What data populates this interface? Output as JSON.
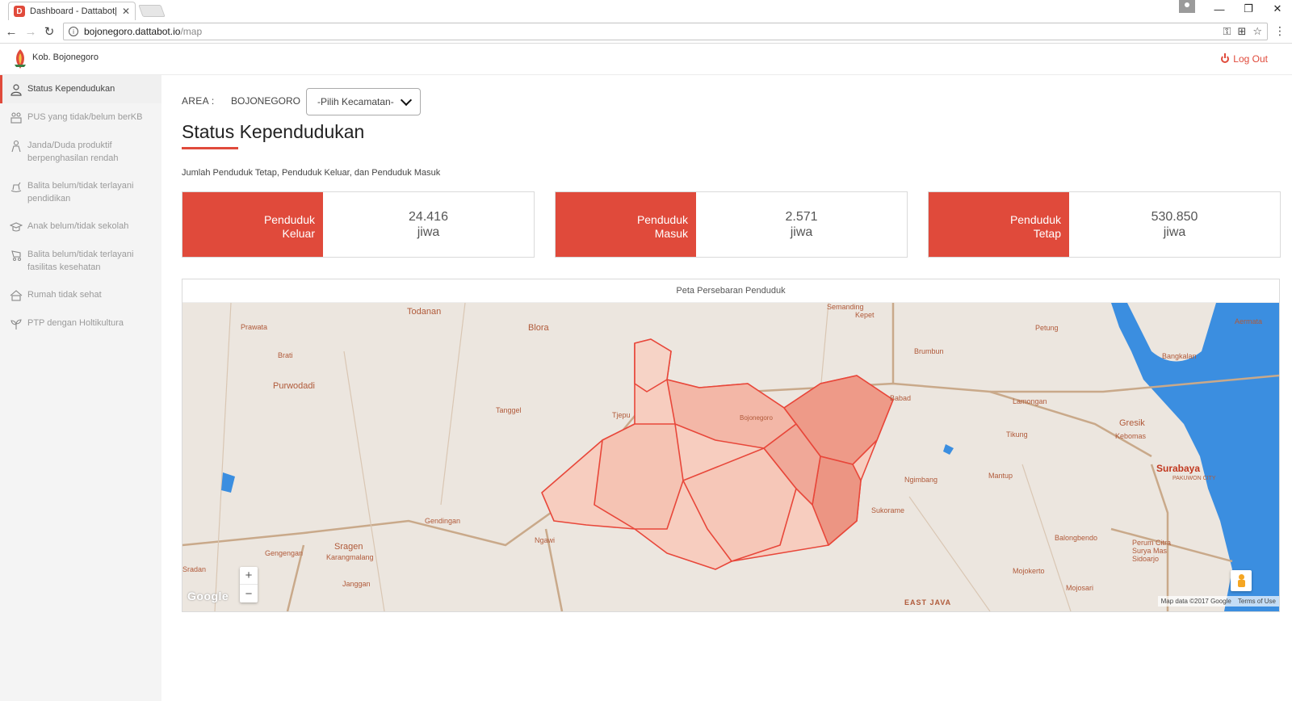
{
  "browser": {
    "tab_title": "Dashboard - Dattabot| Te",
    "url_host": "bojonegoro.dattabot.io",
    "url_path": "/map"
  },
  "header": {
    "brand": "Kob. Bojonegoro",
    "logout": "Log Out",
    "accent": "#e04a3b"
  },
  "sidebar": {
    "items": [
      {
        "label": "Status Kependudukan",
        "icon": "person-icon",
        "active": true
      },
      {
        "label": "PUS yang tidak/belum berKB",
        "icon": "family-icon",
        "active": false
      },
      {
        "label": "Janda/Duda produktif berpenghasilan rendah",
        "icon": "person-alert-icon",
        "active": false
      },
      {
        "label": "Balita belum/tidak terlayani pendidikan",
        "icon": "rocking-horse-icon",
        "active": false
      },
      {
        "label": "Anak belum/tidak sekolah",
        "icon": "graduation-cap-icon",
        "active": false
      },
      {
        "label": "Balita belum/tidak terlayani fasilitas kesehatan",
        "icon": "stroller-icon",
        "active": false
      },
      {
        "label": "Rumah tidak sehat",
        "icon": "house-icon",
        "active": false
      },
      {
        "label": "PTP dengan Holtikultura",
        "icon": "plant-icon",
        "active": false
      }
    ]
  },
  "main": {
    "area_label": "AREA :",
    "area_value": "BOJONEGORO",
    "kecamatan_select": "-Pilih Kecamatan-",
    "title": "Status Kependudukan",
    "subtitle": "Jumlah Penduduk Tetap, Penduduk Keluar, dan Penduduk Masuk",
    "stats": [
      {
        "line1": "Penduduk",
        "line2": "Keluar",
        "value": "24.416",
        "unit": "jiwa"
      },
      {
        "line1": "Penduduk",
        "line2": "Masuk",
        "value": "2.571",
        "unit": "jiwa"
      },
      {
        "line1": "Penduduk",
        "line2": "Tetap",
        "value": "530.850",
        "unit": "jiwa"
      }
    ],
    "map": {
      "title": "Peta Persebaran Penduduk",
      "zoom_in": "+",
      "zoom_out": "−",
      "google": "Google",
      "map_data": "Map data ©2017 Google",
      "terms": "Terms of Use",
      "places": [
        "Todanan",
        "Prawata",
        "Blora",
        "Brati",
        "Purwodadi",
        "Tanggel",
        "Semanding",
        "Kepet",
        "Petung",
        "Brumbun",
        "Aermata",
        "Bangkalan",
        "Lamongan",
        "Gresik",
        "Kebomas",
        "Tikung",
        "Surabaya",
        "PAKUWON CITY",
        "Ngimbang",
        "Mantup",
        "Sukorame",
        "Gendingan",
        "Ngawi",
        "Sragen",
        "Karangmalang",
        "Gengengan",
        "Janggan",
        "Balongbendo",
        "Perum Citra Surya Mas Sidoarjo",
        "Mojokerto",
        "Mojosari",
        "EAST JAVA",
        "Tjepu",
        "Bojonegoro",
        "Babad",
        "Sradan"
      ]
    }
  }
}
